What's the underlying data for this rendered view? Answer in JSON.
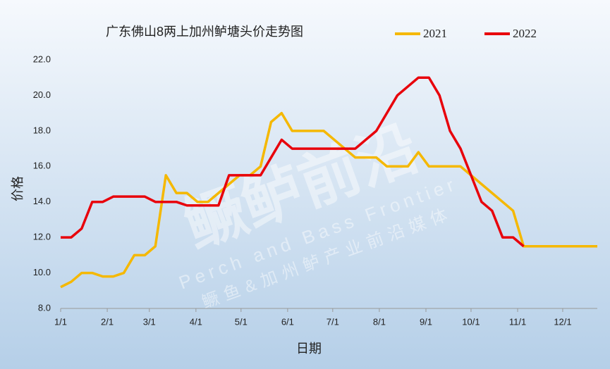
{
  "chart_data": {
    "type": "line",
    "title": "广东佛山8两上加州鲈塘头价走势图",
    "xlabel": "日期",
    "ylabel": "价格",
    "watermark": [
      "鳜鲈前沿",
      "Perch and Bass Frontier",
      "鳜鱼&加州鲈产业前沿媒体"
    ],
    "x": [
      0,
      7,
      14,
      21,
      28,
      35,
      42,
      49,
      56,
      63,
      70,
      77,
      84,
      91,
      98,
      105,
      112,
      119,
      126,
      133,
      140,
      147,
      154,
      161,
      168,
      175,
      182,
      189,
      196,
      203,
      210,
      217,
      224,
      231,
      238,
      245,
      252,
      259,
      266,
      273,
      280,
      287,
      294,
      301,
      308,
      315,
      322,
      329,
      336,
      343,
      350,
      357
    ],
    "series": [
      {
        "name": "2021",
        "color": "#f5b800",
        "values": [
          9.2,
          9.5,
          10,
          10,
          9.8,
          9.8,
          10,
          11,
          11,
          11.5,
          15.5,
          14.5,
          14.5,
          14,
          14,
          14.5,
          15,
          15.5,
          15.5,
          16,
          18.5,
          19,
          18,
          18,
          18,
          18,
          17.5,
          17,
          16.5,
          16.5,
          16.5,
          16,
          16,
          16,
          16.8,
          16,
          16,
          16,
          16,
          15.5,
          15,
          14.5,
          14,
          13.5,
          11.5,
          11.5,
          11.5,
          11.5,
          11.5,
          11.5,
          11.5,
          11.5
        ]
      },
      {
        "name": "2022",
        "color": "#e8000b",
        "values": [
          12,
          12,
          12.5,
          14,
          14,
          14.3,
          14.3,
          14.3,
          14.3,
          14,
          14,
          14,
          13.8,
          13.8,
          13.8,
          13.8,
          15.5,
          15.5,
          15.5,
          15.5,
          16.5,
          17.5,
          17,
          17,
          17,
          17,
          17,
          17,
          17,
          17.5,
          18,
          19,
          20,
          20.5,
          21,
          21,
          20,
          18,
          17,
          15.5,
          14,
          13.5,
          12,
          12,
          11.5,
          null,
          null,
          null,
          null,
          null,
          null,
          null
        ]
      }
    ],
    "xlim": [
      0,
      357
    ],
    "xticks": [
      {
        "value": 0,
        "label": "1/1"
      },
      {
        "value": 31,
        "label": "2/1"
      },
      {
        "value": 59,
        "label": "3/1"
      },
      {
        "value": 90,
        "label": "4/1"
      },
      {
        "value": 120,
        "label": "5/1"
      },
      {
        "value": 151,
        "label": "6/1"
      },
      {
        "value": 181,
        "label": "7/1"
      },
      {
        "value": 212,
        "label": "8/1"
      },
      {
        "value": 243,
        "label": "9/1"
      },
      {
        "value": 273,
        "label": "10/1"
      },
      {
        "value": 304,
        "label": "11/1"
      },
      {
        "value": 334,
        "label": "12/1"
      }
    ],
    "ylim": [
      8,
      22
    ],
    "yticks": [
      {
        "value": 8,
        "label": "8.0"
      },
      {
        "value": 10,
        "label": "10.0"
      },
      {
        "value": 12,
        "label": "12.0"
      },
      {
        "value": 14,
        "label": "14.0"
      },
      {
        "value": 16,
        "label": "16.0"
      },
      {
        "value": 18,
        "label": "18.0"
      },
      {
        "value": 20,
        "label": "20.0"
      },
      {
        "value": 22,
        "label": "22.0"
      }
    ],
    "grid": false,
    "legend": "top-right"
  }
}
